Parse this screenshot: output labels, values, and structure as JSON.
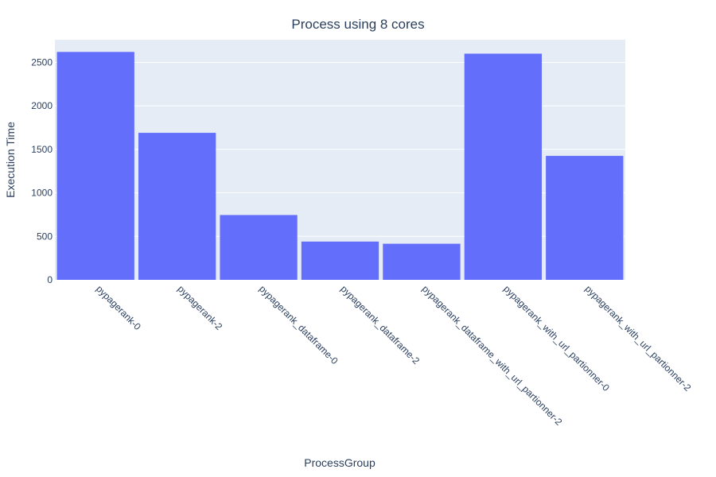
{
  "chart_data": {
    "type": "bar",
    "title": "Process using 8 cores",
    "xlabel": "ProcessGroup",
    "ylabel": "Execution Time",
    "categories": [
      "pypagerank-0",
      "pypagerank-2",
      "pypagerank_dataframe-0",
      "pypagerank_dataframe-2",
      "pypagerank_dataframe_with_url_partionner-2",
      "pypagerank_with_url_partionner-0",
      "pypagerank_with_url_partionner-2"
    ],
    "values": [
      2620,
      1690,
      745,
      440,
      415,
      2600,
      1425
    ],
    "ylim": [
      0,
      2760
    ],
    "yticks": [
      0,
      500,
      1000,
      1500,
      2000,
      2500
    ],
    "grid": true,
    "bar_color": "#636efa",
    "plot_bg": "#e5ecf6",
    "text_color": "#2a3f5f"
  }
}
